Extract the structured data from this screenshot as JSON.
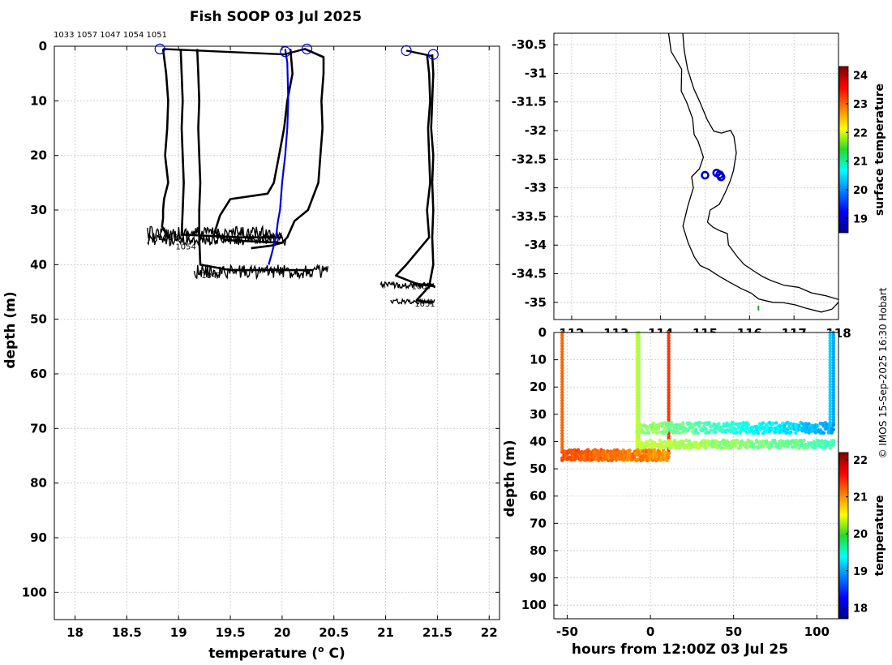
{
  "title": "Fish SOOP 03 Jul 2025",
  "credit": "© IMOS 15-Sep-2025 16:30 Hobart",
  "profile_ids_header": [
    "1033",
    "1057",
    "1047",
    "1054",
    "1051"
  ],
  "colors": {
    "profile_line": "#000000",
    "mean_profile": "#0000dd",
    "marker": "#0000cc",
    "grid": "#c8c8c8",
    "land_marker": "#22aa22"
  },
  "chart_data": [
    {
      "id": "temperature_profiles",
      "type": "line",
      "xlabel": "temperature (o C)",
      "xlabel_parts": {
        "pre": "temperature (",
        "sup": "o",
        "post": " C)"
      },
      "ylabel": "depth (m)",
      "xlim": [
        17.8,
        22.1
      ],
      "ylim": [
        105,
        0
      ],
      "xticks": [
        18,
        18.5,
        19,
        19.5,
        20,
        20.5,
        21,
        21.5,
        22
      ],
      "yticks": [
        0,
        10,
        20,
        30,
        40,
        50,
        60,
        70,
        80,
        90,
        100
      ],
      "grid": true,
      "series": [
        {
          "name": "1033",
          "label": "1033",
          "label_at": [
            18.8,
            35.5
          ],
          "x": [
            18.85,
            18.88,
            18.9,
            18.89,
            18.87,
            18.9,
            18.86,
            18.85,
            18.85,
            18.84,
            18.9
          ],
          "y": [
            0.5,
            5,
            10,
            15,
            20,
            25,
            28,
            30,
            31.5,
            33,
            35
          ]
        },
        {
          "name": "1057",
          "label": "1057",
          "label_at": [
            21.25,
            44.5
          ],
          "x": [
            21.4,
            21.42,
            21.43,
            21.41,
            21.42,
            21.43,
            21.4,
            21.42,
            21.2,
            21.1,
            21.3,
            21.48
          ],
          "y": [
            1.5,
            5,
            10,
            15,
            20,
            25,
            30,
            35,
            40,
            42,
            43.5,
            44
          ]
        },
        {
          "name": "1047",
          "label": "1047",
          "label_at": [
            19.22,
            42.5
          ],
          "x": [
            19.18,
            19.19,
            19.2,
            19.19,
            19.2,
            19.21,
            19.2,
            19.2,
            19.21,
            19.5,
            19.9,
            20.2,
            20.3
          ],
          "y": [
            0.5,
            5,
            10,
            15,
            20,
            25,
            30,
            35,
            40,
            41,
            41,
            41,
            41
          ]
        },
        {
          "name": "1054",
          "label": "1054",
          "label_at": [
            18.97,
            37.2
          ],
          "x": [
            19.02,
            19.03,
            19.04,
            19.03,
            19.04,
            19.05,
            19.04,
            19.03,
            19.6,
            20.0
          ],
          "y": [
            0.5,
            5,
            10,
            15,
            20,
            25,
            30,
            34.5,
            35,
            35
          ]
        },
        {
          "name": "1051",
          "label": "1051",
          "label_at": [
            21.28,
            47.7
          ],
          "x": [
            21.45,
            21.46,
            21.45,
            21.44,
            21.46,
            21.45,
            21.46,
            21.45,
            21.46,
            21.42,
            21.3,
            21.45
          ],
          "y": [
            1.5,
            5,
            10,
            15,
            20,
            25,
            30,
            35,
            40,
            44,
            46.5,
            47
          ]
        },
        {
          "name": "20.3-profile",
          "label": "",
          "x": [
            20.22,
            20.4,
            20.4,
            20.38,
            20.39,
            20.37,
            20.35,
            20.25,
            20.12,
            20.05,
            20.0,
            19.9,
            19.7
          ],
          "y": [
            0.5,
            2,
            5,
            10,
            15,
            20,
            25,
            30,
            32,
            35,
            36,
            36.5,
            37
          ]
        },
        {
          "name": "20.1-profile",
          "label": "",
          "x": [
            20.08,
            20.1,
            20.05,
            20.02,
            19.97,
            19.92,
            19.86,
            19.5,
            19.4,
            19.35,
            19.45,
            20.0
          ],
          "y": [
            0.5,
            5,
            10,
            15,
            20,
            25,
            27,
            28,
            31,
            34,
            35.5,
            36
          ]
        },
        {
          "name": "mean",
          "label": "",
          "x": [
            20.03,
            20.05,
            20.06,
            20.05,
            20.03,
            20.0,
            19.98,
            19.96,
            19.94,
            19.9,
            19.87
          ],
          "y": [
            0.5,
            3,
            10,
            15,
            20,
            25,
            30,
            32,
            35,
            38,
            40
          ]
        }
      ],
      "connector": {
        "x": [
          18.85,
          20.02,
          20.22,
          20.4
        ],
        "y": [
          0.5,
          1.5,
          0.5,
          2
        ]
      },
      "markers": {
        "x": [
          18.82,
          20.03,
          20.24,
          21.2,
          21.46
        ],
        "y": [
          0.5,
          1,
          0.5,
          0.8,
          1.5
        ]
      },
      "noisy_bottoms": [
        {
          "x0": 18.7,
          "x1": 20.0,
          "y0": 33,
          "y1": 35.5
        },
        {
          "x0": 18.7,
          "x1": 20.05,
          "y0": 34.5,
          "y1": 36.5
        },
        {
          "x0": 19.15,
          "x1": 20.45,
          "y0": 40,
          "y1": 42.5
        },
        {
          "x0": 20.95,
          "x1": 21.48,
          "y0": 43.2,
          "y1": 44.3
        },
        {
          "x0": 21.05,
          "x1": 21.48,
          "y0": 46.3,
          "y1": 47.2
        }
      ]
    },
    {
      "id": "location_map",
      "type": "scatter",
      "xlim": [
        111.6,
        118.0
      ],
      "ylim": [
        -35.3,
        -30.3
      ],
      "xticks": [
        112,
        113,
        114,
        115,
        116,
        117,
        118
      ],
      "xtick_labels": [
        "112",
        "113",
        "114",
        "115",
        "116",
        "117",
        "118"
      ],
      "yticks": [
        -30.5,
        -31,
        -31.5,
        -32,
        -32.5,
        -33,
        -33.5,
        -34,
        -34.5,
        -35
      ],
      "ytick_labels": [
        "-30.5",
        "-31",
        "-31.5",
        "-32",
        "-32.5",
        "-33",
        "-33.5",
        "-34",
        "-34.5",
        "-35"
      ],
      "grid": true,
      "points": {
        "lon": [
          115.0,
          115.26,
          115.33,
          115.36
        ],
        "lat": [
          -32.78,
          -32.74,
          -32.77,
          -32.81
        ],
        "color": "#0000cc"
      },
      "coastline_outer": {
        "lon": [
          114.18,
          114.25,
          114.45,
          114.45,
          114.58,
          114.7,
          114.75,
          114.85,
          114.95,
          114.85,
          114.72,
          114.72,
          114.6,
          114.48,
          114.6,
          114.78,
          114.9,
          115.1,
          115.3,
          115.55,
          115.8,
          116.05,
          116.2,
          116.5,
          116.75,
          117.0,
          117.3,
          117.6,
          117.85,
          118.0
        ],
        "lat": [
          -30.3,
          -30.6,
          -30.95,
          -31.3,
          -31.5,
          -31.8,
          -32.05,
          -32.2,
          -32.45,
          -32.65,
          -32.8,
          -33.0,
          -33.3,
          -33.65,
          -33.95,
          -34.2,
          -34.35,
          -34.45,
          -34.55,
          -34.65,
          -34.75,
          -34.85,
          -34.95,
          -34.98,
          -35.0,
          -35.05,
          -35.1,
          -35.15,
          -35.1,
          -35.0
        ]
      },
      "coastline_inner": {
        "lon": [
          114.5,
          114.55,
          114.6,
          114.75,
          114.9,
          115.05,
          115.2,
          115.35,
          115.55,
          115.65,
          115.72,
          115.65,
          115.58,
          115.45,
          115.3,
          115.1,
          115.05,
          115.2,
          115.35,
          115.5,
          115.55,
          115.7,
          115.9,
          116.1,
          116.3,
          116.5,
          116.8,
          117.1,
          117.4,
          117.7,
          118.0
        ],
        "lat": [
          -30.3,
          -30.6,
          -30.95,
          -31.25,
          -31.5,
          -31.8,
          -32.0,
          -32.05,
          -32.0,
          -32.1,
          -32.4,
          -32.7,
          -32.9,
          -33.1,
          -33.3,
          -33.4,
          -33.6,
          -33.7,
          -33.75,
          -33.8,
          -34.0,
          -34.2,
          -34.35,
          -34.45,
          -34.55,
          -34.6,
          -34.7,
          -34.75,
          -34.85,
          -34.9,
          -34.95
        ]
      },
      "land_marker": {
        "lon": 116.2,
        "lat": -35.1
      },
      "colorbar": {
        "label": "surface temperature",
        "ticks": [
          19,
          20,
          21,
          22,
          23,
          24
        ],
        "range": [
          18.5,
          24.3
        ]
      }
    },
    {
      "id": "depth_time_section",
      "type": "scatter",
      "xlabel": "hours from 12:00Z 03 Jul 25",
      "ylabel": "depth (m)",
      "xlim": [
        -58,
        113
      ],
      "ylim": [
        105,
        0
      ],
      "xticks": [
        -50,
        0,
        50,
        100
      ],
      "yticks": [
        0,
        10,
        20,
        30,
        40,
        50,
        60,
        70,
        80,
        90,
        100
      ],
      "grid": true,
      "columns": [
        {
          "x": -53,
          "y0": 0,
          "y1": 43,
          "temp": 21.2
        },
        {
          "x": -8,
          "y0": 0,
          "y1": 43,
          "temp": 20.3
        },
        {
          "x": -7,
          "y0": 0,
          "y1": 43,
          "temp": 20.1
        },
        {
          "x": 11,
          "y0": 0,
          "y1": 44,
          "temp": 21.4
        },
        {
          "x": 108,
          "y0": 0,
          "y1": 34,
          "temp": 19.2
        },
        {
          "x": 110,
          "y0": 0,
          "y1": 34,
          "temp": 19.0
        }
      ],
      "bands": [
        {
          "x0": -53,
          "x1": 11,
          "y0": 43,
          "y1": 47,
          "temp_start": 21.3,
          "temp_end": 21.0
        },
        {
          "x0": -8,
          "x1": 110,
          "y0": 33,
          "y1": 37,
          "temp_start": 20.1,
          "temp_end": 19.0
        },
        {
          "x0": -8,
          "x1": 110,
          "y0": 39.5,
          "y1": 42.5,
          "temp_start": 20.3,
          "temp_end": 19.7
        }
      ],
      "colorbar": {
        "label": "temperature",
        "ticks": [
          18,
          19,
          20,
          21,
          22
        ],
        "range": [
          17.7,
          22.2
        ]
      }
    }
  ]
}
